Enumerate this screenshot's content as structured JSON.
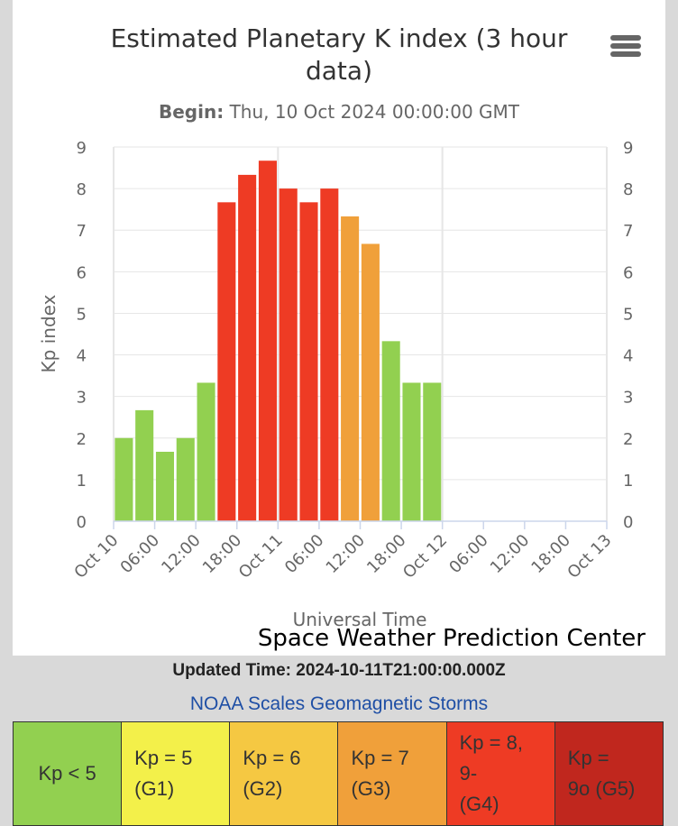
{
  "chart_data": {
    "type": "bar",
    "title": "Estimated Planetary K index (3 hour data)",
    "title_lines": [
      "Estimated Planetary K index (3 hour",
      "data)"
    ],
    "subtitle_label": "Begin:",
    "subtitle_value": "Thu, 10 Oct 2024 00:00:00 GMT",
    "xlabel": "Universal Time",
    "ylabel": "Kp index",
    "ylim": [
      0,
      9
    ],
    "yticks": [
      0,
      1,
      2,
      3,
      4,
      5,
      6,
      7,
      8,
      9
    ],
    "secondary_yaxis": true,
    "x_range_hours": [
      0,
      72
    ],
    "x_tick_labels": [
      "Oct 10",
      "06:00",
      "12:00",
      "18:00",
      "Oct 11",
      "06:00",
      "12:00",
      "18:00",
      "Oct 12",
      "06:00",
      "12:00",
      "18:00",
      "Oct 13"
    ],
    "bar_interval_hours": 3,
    "values": [
      2.0,
      2.67,
      1.67,
      2.0,
      3.33,
      7.67,
      8.33,
      8.67,
      8.0,
      7.67,
      8.0,
      7.33,
      6.67,
      4.33,
      3.33,
      3.33
    ],
    "bar_colors": [
      "#92d050",
      "#92d050",
      "#92d050",
      "#92d050",
      "#92d050",
      "#ee3b24",
      "#ee3b24",
      "#ee3b24",
      "#ee3b24",
      "#ee3b24",
      "#ee3b24",
      "#f0a03a",
      "#f0a03a",
      "#92d050",
      "#92d050",
      "#92d050"
    ],
    "grid": true,
    "credit": "Space Weather Prediction Center"
  },
  "footer": {
    "updated": "Updated Time: 2024-10-11T21:00:00.000Z",
    "scales_link": "NOAA Scales Geomagnetic Storms"
  },
  "scales": [
    {
      "line1": "Kp < 5",
      "line2": "",
      "color": "#92d050"
    },
    {
      "line1": "Kp = 5",
      "line2": "(G1)",
      "color": "#f3f04a"
    },
    {
      "line1": "Kp = 6",
      "line2": "(G2)",
      "color": "#f5c842"
    },
    {
      "line1": "Kp = 7",
      "line2": "(G3)",
      "color": "#f0a03a"
    },
    {
      "line1": "Kp = 8, 9-",
      "line2": "(G4)",
      "color": "#ee3b24"
    },
    {
      "line1": "Kp =",
      "line2": "9o (G5)",
      "color": "#c0271e"
    }
  ]
}
